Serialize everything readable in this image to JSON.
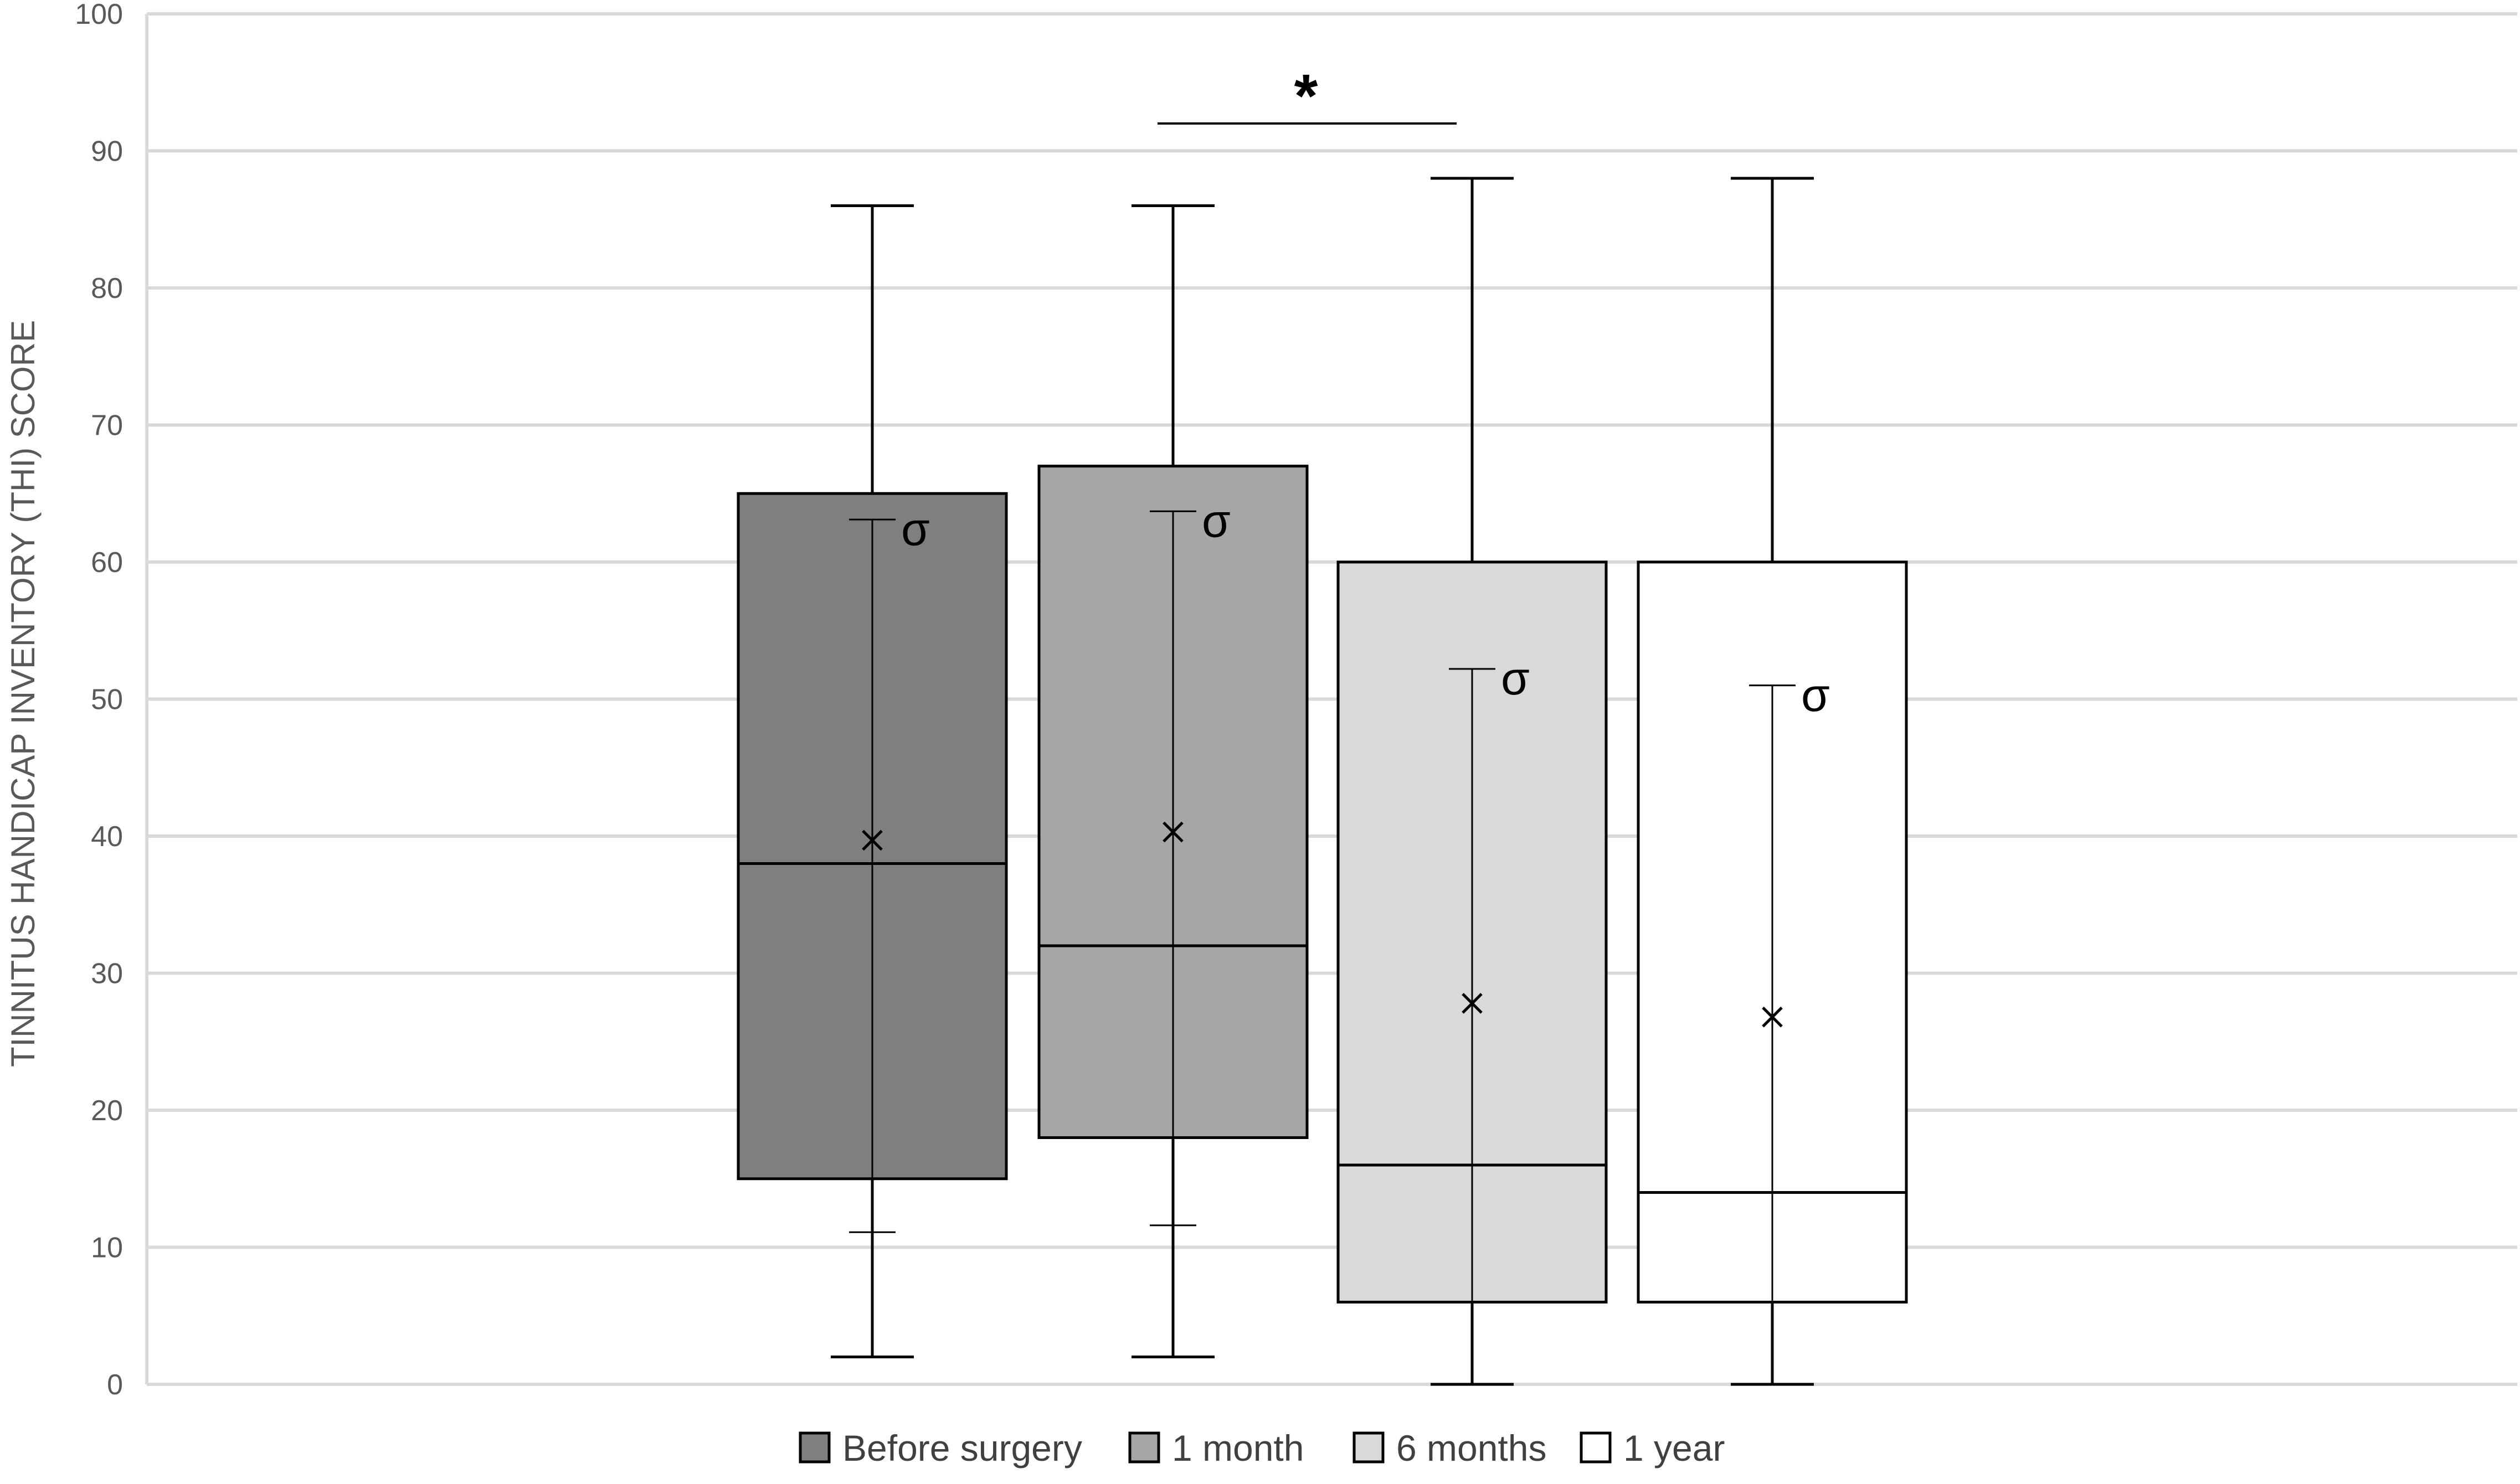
{
  "chart_data": {
    "type": "box",
    "ylabel": "TINNITUS HANDICAP INVENTORY (THI) SCORE",
    "ylim": [
      0,
      100
    ],
    "yticks": [
      "0",
      "10",
      "20",
      "30",
      "40",
      "50",
      "60",
      "70",
      "80",
      "90",
      "100"
    ],
    "grid": true,
    "legend_position": "bottom",
    "series": [
      {
        "name": "Before surgery",
        "color": "#7f7f7f",
        "min": 2,
        "q1": 15,
        "median": 38,
        "q3": 65,
        "max": 86,
        "mean": 39.7,
        "sd_low": 11.1,
        "sd_high": 63.1
      },
      {
        "name": "1 month",
        "color": "#a6a6a6",
        "min": 2,
        "q1": 18,
        "median": 32,
        "q3": 67,
        "max": 86,
        "mean": 40.3,
        "sd_low": 11.6,
        "sd_high": 63.7
      },
      {
        "name": "6 months",
        "color": "#d9d9d9",
        "min": 0,
        "q1": 6,
        "median": 16,
        "q3": 60,
        "max": 88,
        "mean": 27.8,
        "sd_low": 0,
        "sd_high": 52.2
      },
      {
        "name": "1 year",
        "color": "#ffffff",
        "min": 0,
        "q1": 6,
        "median": 14,
        "q3": 60,
        "max": 88,
        "mean": 26.8,
        "sd_low": 0,
        "sd_high": 51
      }
    ],
    "sd_symbol": "σ",
    "significance": {
      "symbol": "*",
      "between": [
        "1 month",
        "6 months"
      ],
      "level": 92
    }
  }
}
